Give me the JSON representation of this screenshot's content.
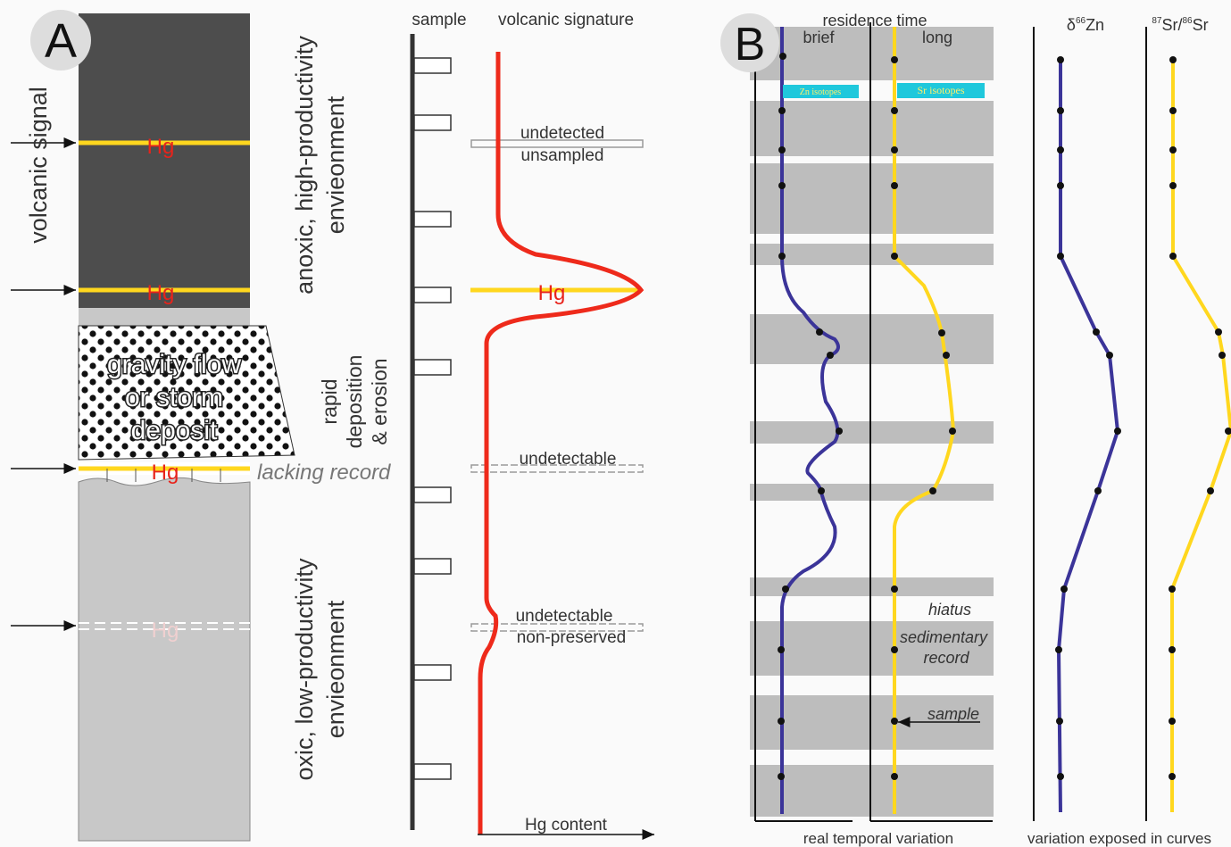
{
  "panel_a": {
    "label": "A",
    "volcanic_signal": "volcanic signal",
    "hg_labels": [
      "Hg",
      "Hg",
      "Hg",
      "Hg"
    ],
    "anoxic_env": [
      "anoxic, high-productivity",
      "envieonment"
    ],
    "deposit": [
      "gravity flow",
      "or storm",
      "deposit"
    ],
    "rapid": [
      "rapid",
      "deposition",
      "& erosion"
    ],
    "lacking_record": "lacking record",
    "oxic_env": [
      "oxic, low-productivity",
      "envieonment"
    ],
    "sample_header": "sample",
    "signature_header": "volcanic signature",
    "undetected": "undetected",
    "unsampled": "unsampled",
    "peak_hg": "Hg",
    "undetectable_1": "undetectable",
    "undetectable_2": "undetectable",
    "non_preserved": "non-preserved",
    "x_axis": "Hg content"
  },
  "panel_b": {
    "label": "B",
    "residence_time": "residence time",
    "brief": "brief",
    "long": "long",
    "zn_isotopes": "Zn isotopes",
    "sr_isotopes": "Sr isotopes",
    "zn_label": {
      "prefix": "δ",
      "sup": "66",
      "suffix": "Zn"
    },
    "sr_label": {
      "sup1": "87",
      "mid": "Sr/",
      "sup2": "86",
      "suffix": "Sr"
    },
    "hiatus": "hiatus",
    "sedimentary_record": [
      "sedimentary",
      "record"
    ],
    "sample": "sample",
    "real_variation": "real temporal variation",
    "exposed_variation": "variation exposed in curves"
  }
}
